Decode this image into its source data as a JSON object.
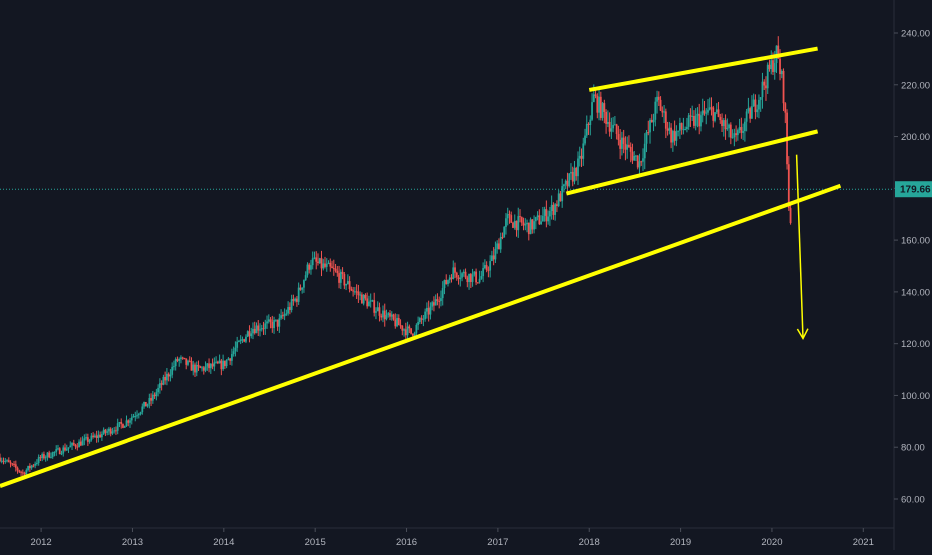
{
  "chart_data": {
    "type": "candlestick",
    "title": "",
    "xlabel": "",
    "ylabel": "",
    "x_range": [
      2011.55,
      2021.15
    ],
    "ylim": [
      50,
      250
    ],
    "x_ticks": [
      {
        "label": "2012",
        "value": 2012
      },
      {
        "label": "2013",
        "value": 2013
      },
      {
        "label": "2014",
        "value": 2014
      },
      {
        "label": "2015",
        "value": 2015
      },
      {
        "label": "2016",
        "value": 2016
      },
      {
        "label": "2017",
        "value": 2017
      },
      {
        "label": "2018",
        "value": 2018
      },
      {
        "label": "2019",
        "value": 2019
      },
      {
        "label": "2020",
        "value": 2020
      },
      {
        "label": "2021",
        "value": 2021
      }
    ],
    "y_ticks": [
      {
        "label": "60.00",
        "value": 60
      },
      {
        "label": "80.00",
        "value": 80
      },
      {
        "label": "100.00",
        "value": 100
      },
      {
        "label": "120.00",
        "value": 120
      },
      {
        "label": "140.00",
        "value": 140
      },
      {
        "label": "160.00",
        "value": 160
      },
      {
        "label": "180.00",
        "value": 180
      },
      {
        "label": "200.00",
        "value": 200
      },
      {
        "label": "220.00",
        "value": 220
      },
      {
        "label": "240.00",
        "value": 240
      }
    ],
    "current_price": {
      "value": 179.66,
      "label": "179.66"
    },
    "price_path": [
      [
        2011.55,
        76
      ],
      [
        2011.8,
        70
      ],
      [
        2012.0,
        76
      ],
      [
        2012.3,
        80
      ],
      [
        2012.6,
        84
      ],
      [
        2012.9,
        89
      ],
      [
        2013.2,
        98
      ],
      [
        2013.5,
        114
      ],
      [
        2013.7,
        110
      ],
      [
        2014.0,
        112
      ],
      [
        2014.3,
        126
      ],
      [
        2014.6,
        128
      ],
      [
        2014.8,
        138
      ],
      [
        2014.95,
        152
      ],
      [
        2015.2,
        148
      ],
      [
        2015.5,
        138
      ],
      [
        2015.8,
        130
      ],
      [
        2016.05,
        124
      ],
      [
        2016.3,
        135
      ],
      [
        2016.5,
        148
      ],
      [
        2016.8,
        145
      ],
      [
        2016.95,
        153
      ],
      [
        2017.1,
        168
      ],
      [
        2017.35,
        165
      ],
      [
        2017.6,
        172
      ],
      [
        2017.9,
        190
      ],
      [
        2018.05,
        215
      ],
      [
        2018.35,
        198
      ],
      [
        2018.55,
        190
      ],
      [
        2018.75,
        214
      ],
      [
        2018.9,
        200
      ],
      [
        2019.1,
        205
      ],
      [
        2019.35,
        210
      ],
      [
        2019.6,
        198
      ],
      [
        2019.85,
        215
      ],
      [
        2020.05,
        232
      ],
      [
        2020.12,
        220
      ],
      [
        2020.17,
        195
      ],
      [
        2020.2,
        165
      ],
      [
        2020.22,
        178
      ]
    ],
    "annotations": [
      {
        "kind": "trendline",
        "name": "long-term-support",
        "from": [
          2011.55,
          65
        ],
        "to": [
          2020.75,
          181
        ],
        "color": "#ffff00"
      },
      {
        "kind": "trendline",
        "name": "channel-top",
        "from": [
          2018.0,
          218
        ],
        "to": [
          2020.5,
          234
        ],
        "color": "#ffff00"
      },
      {
        "kind": "trendline",
        "name": "channel-bottom",
        "from": [
          2017.75,
          178
        ],
        "to": [
          2020.5,
          202
        ],
        "color": "#ffff00"
      },
      {
        "kind": "arrow",
        "name": "projection-arrow",
        "from": [
          2020.27,
          193
        ],
        "to": [
          2020.34,
          122
        ],
        "color": "#ffff00"
      }
    ],
    "colors": {
      "background": "#131722",
      "up": "#26a69a",
      "down": "#ef5350",
      "grid": "#1e222d",
      "axis_text": "#b2b5be",
      "price_line": "#26a69a",
      "drawing": "#ffff00"
    },
    "grid": false
  }
}
